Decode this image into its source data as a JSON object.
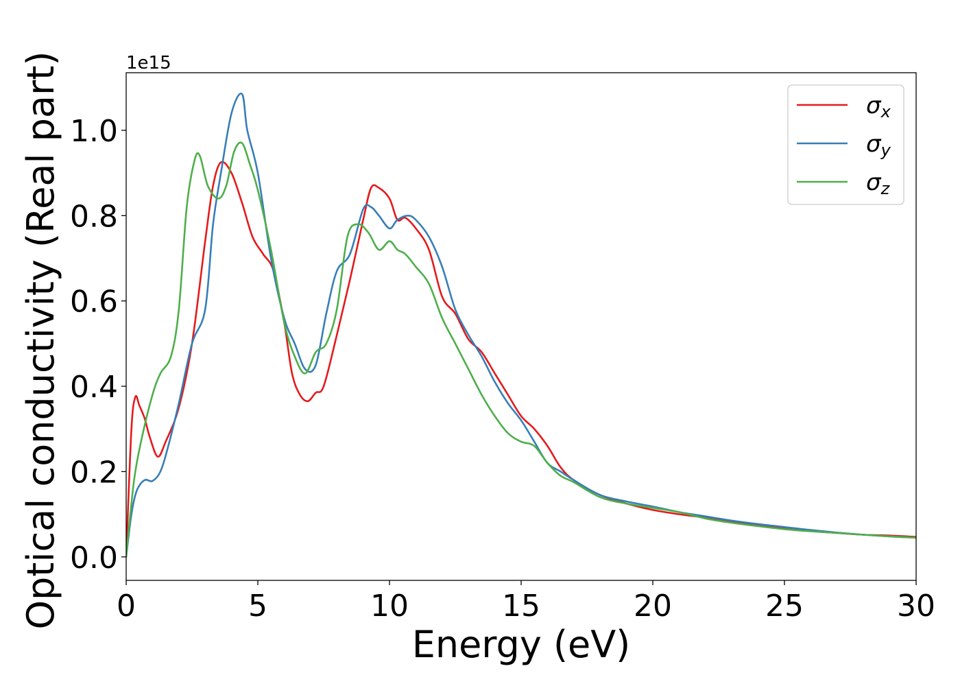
{
  "chart_data": {
    "type": "line",
    "xlabel": "Energy (eV)",
    "ylabel": "Optical conductivity (Real part)",
    "y_offset_label": "1e15",
    "xlim": [
      0,
      30
    ],
    "ylim": [
      -0.055,
      1.135
    ],
    "x_ticks": [
      0,
      5,
      10,
      15,
      20,
      25,
      30
    ],
    "x_tick_labels": [
      "0",
      "5",
      "10",
      "15",
      "20",
      "25",
      "30"
    ],
    "y_ticks": [
      0.0,
      0.2,
      0.4,
      0.6,
      0.8,
      1.0
    ],
    "y_tick_labels": [
      "0.0",
      "0.2",
      "0.4",
      "0.6",
      "0.8",
      "1.0"
    ],
    "grid": false,
    "legend_position": "top-right",
    "series": [
      {
        "name": "σx",
        "symbol": "σ",
        "subscript": "x",
        "color": "#e41a1c",
        "x": [
          0,
          0.2,
          0.35,
          0.5,
          0.7,
          0.9,
          1.2,
          1.5,
          2.0,
          2.5,
          3.0,
          3.3,
          3.6,
          4.0,
          4.4,
          4.8,
          5.2,
          5.6,
          6.0,
          6.3,
          6.6,
          6.9,
          7.2,
          7.5,
          8.0,
          8.5,
          9.0,
          9.3,
          9.6,
          10.0,
          10.3,
          10.6,
          11.0,
          11.5,
          12.0,
          12.5,
          13.0,
          13.5,
          14.0,
          14.5,
          15.0,
          15.5,
          16.0,
          16.5,
          17.0,
          18.0,
          19.0,
          20.0,
          21.0,
          22.0,
          23.0,
          24.0,
          25.0,
          26.0,
          27.0,
          28.0,
          29.0,
          30.0
        ],
        "values": [
          0.0,
          0.3,
          0.375,
          0.355,
          0.325,
          0.28,
          0.235,
          0.27,
          0.35,
          0.5,
          0.74,
          0.87,
          0.925,
          0.9,
          0.83,
          0.75,
          0.71,
          0.67,
          0.55,
          0.43,
          0.38,
          0.365,
          0.385,
          0.4,
          0.52,
          0.65,
          0.79,
          0.865,
          0.865,
          0.84,
          0.79,
          0.795,
          0.77,
          0.72,
          0.61,
          0.57,
          0.51,
          0.48,
          0.43,
          0.38,
          0.33,
          0.3,
          0.26,
          0.21,
          0.18,
          0.145,
          0.125,
          0.11,
          0.1,
          0.092,
          0.083,
          0.075,
          0.068,
          0.061,
          0.056,
          0.052,
          0.05,
          0.047
        ]
      },
      {
        "name": "σy",
        "symbol": "σ",
        "subscript": "y",
        "color": "#377eb8",
        "x": [
          0,
          0.2,
          0.4,
          0.7,
          1.0,
          1.3,
          1.6,
          2.0,
          2.5,
          3.0,
          3.3,
          3.6,
          4.0,
          4.4,
          4.6,
          5.0,
          5.5,
          6.0,
          6.4,
          6.8,
          7.2,
          7.6,
          8.0,
          8.5,
          9.0,
          9.3,
          9.6,
          10.0,
          10.3,
          10.7,
          11.0,
          11.5,
          12.0,
          12.5,
          13.0,
          13.5,
          14.0,
          14.5,
          15.0,
          15.5,
          16.0,
          16.5,
          17.0,
          18.0,
          19.0,
          20.0,
          21.0,
          22.0,
          23.0,
          24.0,
          25.0,
          26.0,
          27.0,
          28.0,
          29.0,
          30.0
        ],
        "values": [
          0.0,
          0.1,
          0.155,
          0.18,
          0.178,
          0.2,
          0.26,
          0.36,
          0.5,
          0.58,
          0.78,
          0.9,
          1.04,
          1.085,
          1.0,
          0.9,
          0.7,
          0.56,
          0.5,
          0.44,
          0.45,
          0.57,
          0.67,
          0.71,
          0.815,
          0.82,
          0.8,
          0.77,
          0.79,
          0.8,
          0.79,
          0.75,
          0.68,
          0.58,
          0.52,
          0.47,
          0.41,
          0.36,
          0.32,
          0.27,
          0.22,
          0.2,
          0.18,
          0.145,
          0.13,
          0.118,
          0.105,
          0.095,
          0.085,
          0.077,
          0.07,
          0.063,
          0.057,
          0.052,
          0.048,
          0.045
        ]
      },
      {
        "name": "σz",
        "symbol": "σ",
        "subscript": "z",
        "color": "#4daf4a",
        "x": [
          0,
          0.3,
          0.6,
          1.0,
          1.3,
          1.7,
          2.0,
          2.3,
          2.6,
          2.8,
          3.1,
          3.5,
          3.8,
          4.1,
          4.4,
          4.7,
          5.0,
          5.5,
          6.0,
          6.4,
          6.8,
          7.2,
          7.6,
          8.0,
          8.4,
          8.8,
          9.2,
          9.6,
          10.0,
          10.3,
          10.6,
          11.0,
          11.5,
          12.0,
          12.5,
          13.0,
          13.5,
          14.0,
          14.5,
          15.0,
          15.5,
          16.0,
          16.5,
          17.0,
          18.0,
          19.0,
          20.0,
          21.0,
          22.0,
          23.0,
          24.0,
          25.0,
          26.0,
          27.0,
          28.0,
          29.0,
          30.0
        ],
        "values": [
          0.0,
          0.18,
          0.28,
          0.38,
          0.43,
          0.47,
          0.58,
          0.82,
          0.93,
          0.94,
          0.87,
          0.84,
          0.87,
          0.95,
          0.97,
          0.92,
          0.86,
          0.72,
          0.55,
          0.47,
          0.43,
          0.48,
          0.5,
          0.58,
          0.75,
          0.78,
          0.76,
          0.72,
          0.74,
          0.72,
          0.71,
          0.68,
          0.64,
          0.56,
          0.5,
          0.44,
          0.38,
          0.33,
          0.29,
          0.27,
          0.26,
          0.22,
          0.19,
          0.175,
          0.14,
          0.125,
          0.115,
          0.105,
          0.09,
          0.08,
          0.072,
          0.065,
          0.06,
          0.056,
          0.052,
          0.048,
          0.045
        ]
      }
    ]
  }
}
